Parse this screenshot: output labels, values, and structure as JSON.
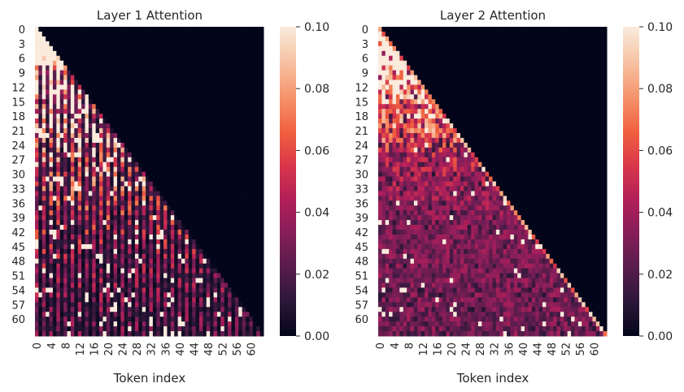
{
  "figure": {
    "colors": {
      "background": "#ffffff",
      "text": "#262626",
      "colormap": [
        "#03051a",
        "#2c1739",
        "#571c4b",
        "#851e5a",
        "#b11f59",
        "#d9364b",
        "#f0603f",
        "#f5936a",
        "#f6c0a0",
        "#faebdd"
      ]
    }
  },
  "chart_data": [
    {
      "type": "heatmap",
      "title": "Layer 1 Attention",
      "xlabel": "Token index",
      "ylabel": "",
      "x_tick_labels": [
        "0",
        "4",
        "8",
        "12",
        "16",
        "20",
        "24",
        "28",
        "32",
        "36",
        "40",
        "44",
        "48",
        "52",
        "56",
        "60"
      ],
      "y_tick_labels": [
        "0",
        "3",
        "6",
        "9",
        "12",
        "15",
        "18",
        "21",
        "24",
        "27",
        "30",
        "33",
        "36",
        "39",
        "42",
        "45",
        "48",
        "51",
        "54",
        "57",
        "60"
      ],
      "matrix_size": 64,
      "mask": "upper triangle (token j > i) is 0.0 — causal attention",
      "value_range": [
        0.0,
        0.1
      ],
      "colorbar": {
        "ticks": [
          "0.00",
          "0.02",
          "0.04",
          "0.06",
          "0.08",
          "0.10"
        ],
        "min": 0.0,
        "max": 0.1
      },
      "diagonal_seed": 11,
      "pattern": "early rows saturated (>=0.1); mid rows show vertical stripes of high values on even columns; values shrink toward bottom-right"
    },
    {
      "type": "heatmap",
      "title": "Layer 2 Attention",
      "xlabel": "Token index",
      "ylabel": "",
      "x_tick_labels": [
        "0",
        "4",
        "8",
        "12",
        "16",
        "20",
        "24",
        "28",
        "32",
        "36",
        "40",
        "44",
        "48",
        "52",
        "56",
        "60"
      ],
      "y_tick_labels": [
        "0",
        "3",
        "6",
        "9",
        "12",
        "15",
        "18",
        "21",
        "24",
        "27",
        "30",
        "33",
        "36",
        "39",
        "42",
        "45",
        "48",
        "51",
        "54",
        "57",
        "60"
      ],
      "matrix_size": 64,
      "mask": "upper triangle (token j > i) is 0.0 — causal attention",
      "value_range": [
        0.0,
        0.1
      ],
      "colorbar": {
        "ticks": [
          "0.00",
          "0.02",
          "0.04",
          "0.06",
          "0.08",
          "0.10"
        ],
        "min": 0.0,
        "max": 0.1
      },
      "diagonal_seed": 29,
      "pattern": "more uniform noisy mid-range values (0.01-0.06) across the lower triangle, scattered bright cells"
    }
  ]
}
